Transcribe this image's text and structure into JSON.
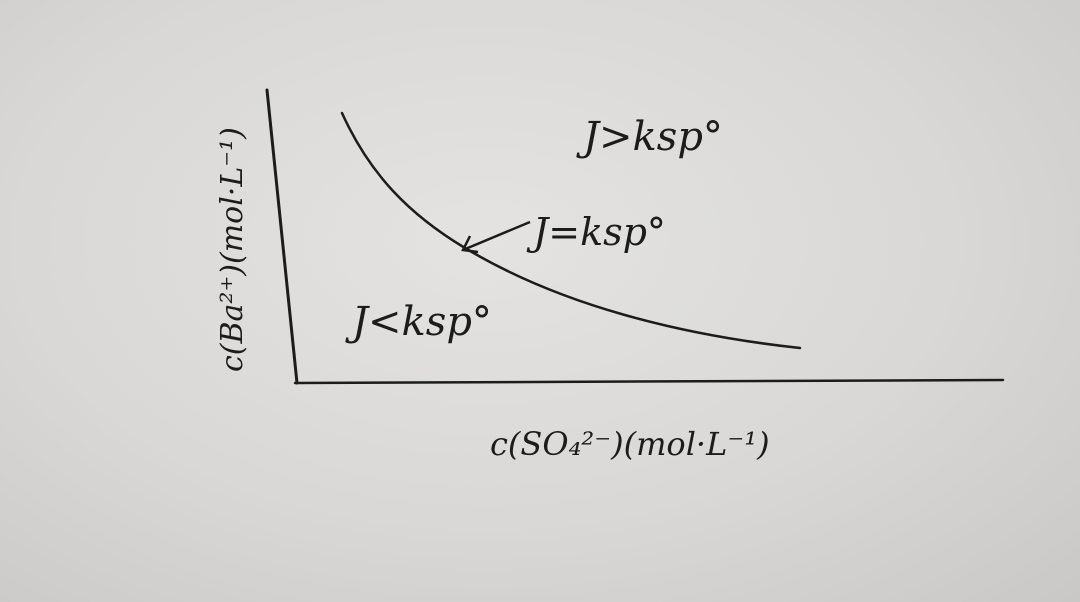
{
  "diagram": {
    "x_axis_label": "c(SO₄²⁻)(mol·L⁻¹)",
    "y_axis_label": "c(Ba²⁺)(mol·L⁻¹)",
    "regions": {
      "above": "J>ksp°",
      "on_curve": "J=ksp°",
      "below": "J<ksp°"
    },
    "ink_color": "#1c1c1c",
    "paper_color": "#dcdbd9"
  }
}
